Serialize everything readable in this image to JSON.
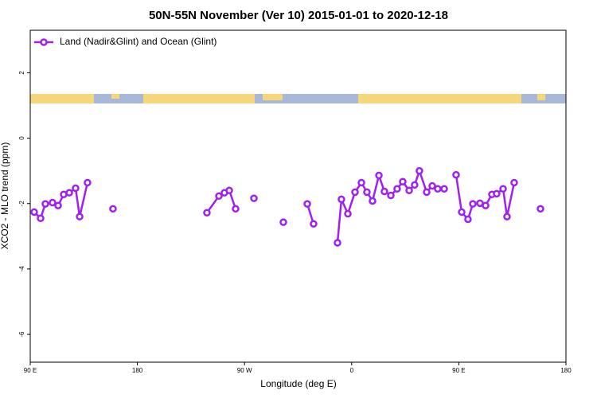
{
  "chart_data": {
    "type": "line",
    "title": "50N-55N November (Ver 10)   2015-01-01 to 2020-12-18",
    "x_label": "Longitude (deg E)",
    "y_label": "XCO2 - MLO trend (ppm)",
    "xlim": [
      90,
      540
    ],
    "ylim": [
      -6.85,
      3.3
    ],
    "xticks": [
      {
        "value": 90,
        "label": "90 E"
      },
      180,
      {
        "value": 270,
        "label": "90 W"
      },
      {
        "value": 360,
        "label": "0"
      },
      {
        "value": 450,
        "label": "90 E"
      },
      {
        "value": 540,
        "label": "180"
      }
    ],
    "yticks": [
      -6,
      -4,
      -2,
      0,
      2
    ],
    "legend": "top-left",
    "series": [
      {
        "name": "Land (Nadir&Glint) and Ocean (Glint)",
        "color": "#a020f0",
        "x": [
          93.3,
          98.7,
          102.7,
          108.7,
          113.4,
          118.1,
          122.8,
          128.1,
          131.5,
          138.1,
          null,
          159.5,
          null,
          238.4,
          248.5,
          253.1,
          257.2,
          262.5,
          null,
          277.9,
          null,
          302.6,
          null,
          322.7,
          328.0,
          null,
          348.1,
          351.4,
          356.8,
          362.8,
          368.2,
          372.8,
          377.5,
          382.9,
          387.5,
          392.9,
          398.2,
          402.9,
          408.3,
          412.9,
          416.9,
          423.0,
          427.7,
          432.3,
          437.7,
          null,
          447.7,
          452.4,
          457.7,
          461.8,
          467.8,
          472.5,
          477.8,
          481.8,
          487.2,
          490.5,
          496.5,
          null,
          518.6
        ],
        "values": [
          -2.26,
          -2.45,
          -2.01,
          -1.97,
          -2.06,
          -1.72,
          -1.67,
          -1.53,
          -2.4,
          -1.36,
          null,
          -2.16,
          null,
          -2.28,
          -1.77,
          -1.67,
          -1.6,
          -2.16,
          null,
          -1.84,
          null,
          -2.57,
          null,
          -2.01,
          -2.62,
          null,
          -3.2,
          -1.87,
          -2.31,
          -1.65,
          -1.36,
          -1.65,
          -1.92,
          -1.14,
          -1.63,
          -1.75,
          -1.55,
          -1.33,
          -1.6,
          -1.43,
          -1.0,
          -1.65,
          -1.46,
          -1.55,
          -1.55,
          null,
          -1.12,
          -2.26,
          -2.48,
          -2.01,
          -1.99,
          -2.06,
          -1.72,
          -1.7,
          -1.55,
          -2.4,
          -1.36,
          null,
          -2.16
        ]
      }
    ]
  }
}
